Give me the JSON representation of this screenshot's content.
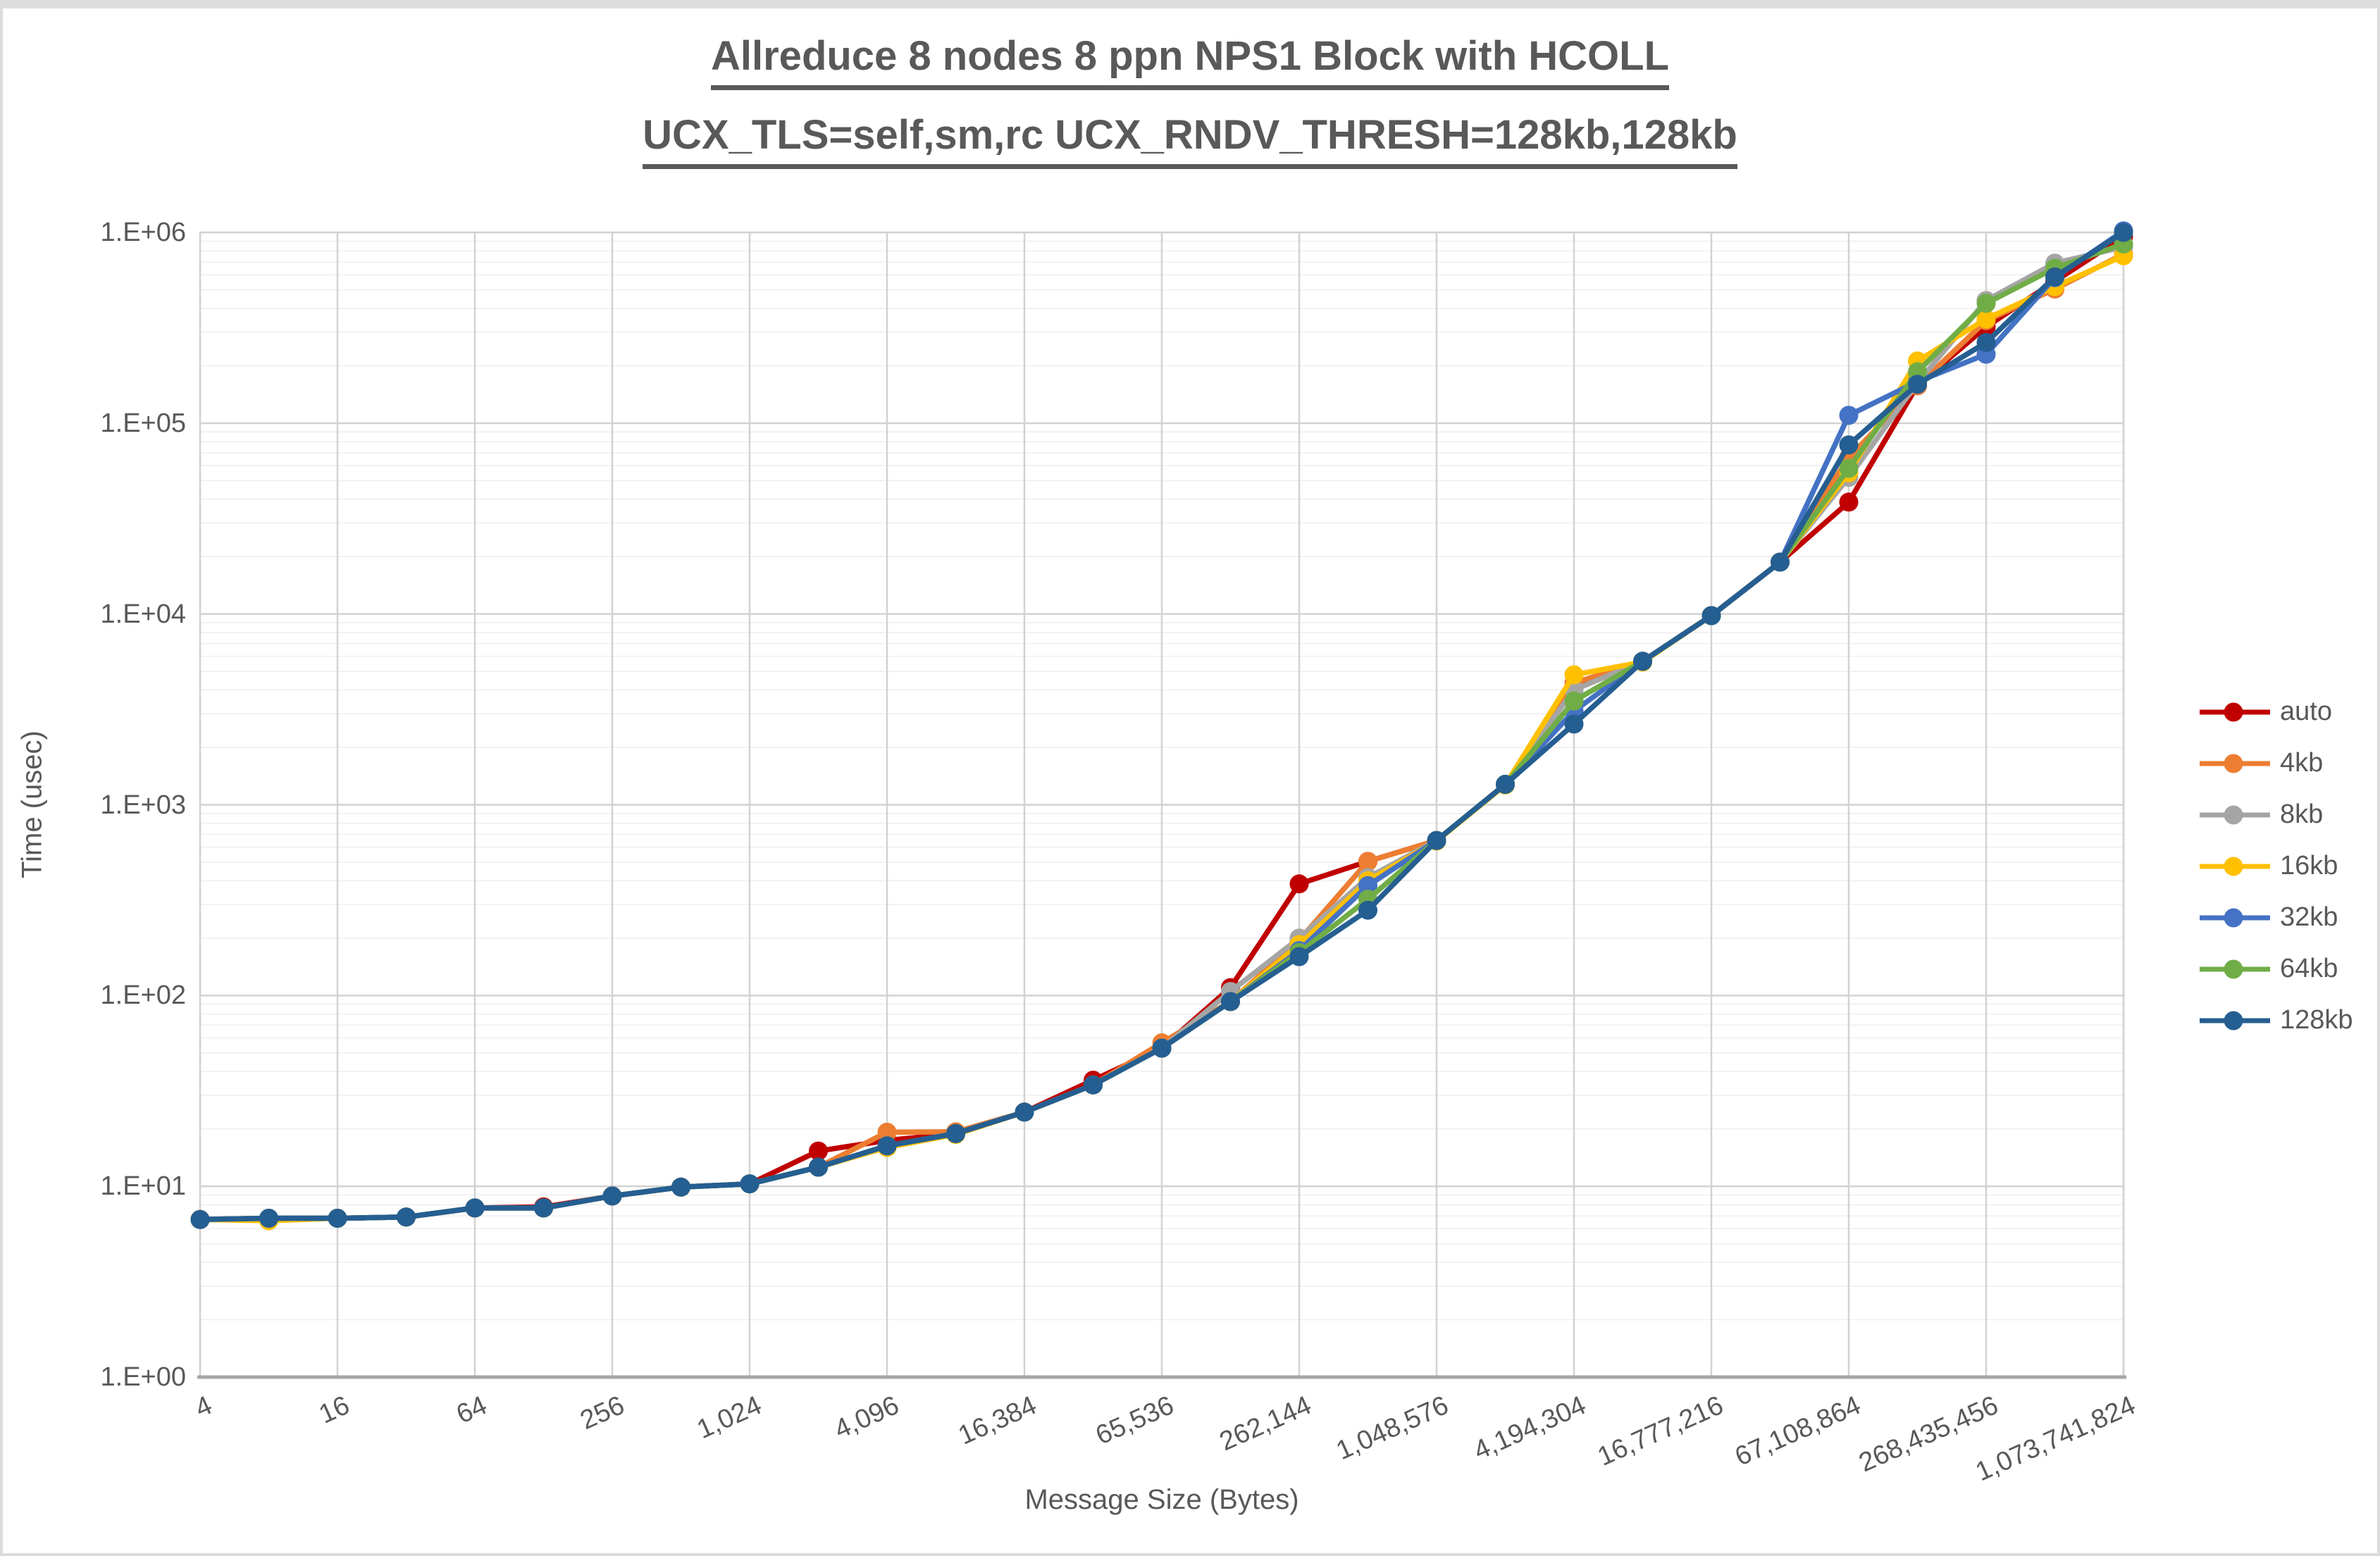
{
  "title": {
    "line1": "Allreduce 8 nodes 8 ppn NPS1 Block with HCOLL",
    "line2": "UCX_TLS=self,sm,rc UCX_RNDV_THRESH=128kb,128kb"
  },
  "axes": {
    "x_title": "Message Size (Bytes)",
    "y_title": "Time (usec)",
    "y_tick_labels": [
      "1.E+00",
      "1.E+01",
      "1.E+02",
      "1.E+03",
      "1.E+04",
      "1.E+05",
      "1.E+06"
    ],
    "x_tick_labels": [
      "4",
      "16",
      "64",
      "256",
      "1,024",
      "4,096",
      "16,384",
      "65,536",
      "262,144",
      "1,048,576",
      "4,194,304",
      "16,777,216",
      "67,108,864",
      "268,435,456",
      "1,073,741,824"
    ]
  },
  "legend": {
    "items": [
      {
        "label": "auto",
        "color": "#C00000"
      },
      {
        "label": "4kb",
        "color": "#ED7D31"
      },
      {
        "label": "8kb",
        "color": "#A5A5A5"
      },
      {
        "label": "16kb",
        "color": "#FFC000"
      },
      {
        "label": "32kb",
        "color": "#4472C4"
      },
      {
        "label": "64kb",
        "color": "#70AD47"
      },
      {
        "label": "128kb",
        "color": "#255E91"
      }
    ]
  },
  "ui_colors": {
    "text": "#595959",
    "grid_major": "#d2d2d2",
    "grid_minor": "#efefef",
    "axis_line": "#a6a6a6",
    "background": "#ffffff"
  },
  "chart_data": {
    "type": "line",
    "title": "Allreduce 8 nodes 8 ppn NPS1 Block with HCOLL UCX_TLS=self,sm,rc UCX_RNDV_THRESH=128kb,128kb",
    "xlabel": "Message Size (Bytes)",
    "ylabel": "Time (usec)",
    "x_scale": "log2",
    "y_scale": "log10",
    "xlim": [
      4,
      1073741824
    ],
    "ylim": [
      1,
      1000000
    ],
    "grid": {
      "major": true,
      "minor_log_horizontal": true
    },
    "legend_position": "right",
    "x": [
      4,
      8,
      16,
      32,
      64,
      128,
      256,
      512,
      1024,
      2048,
      4096,
      8192,
      16384,
      32768,
      65536,
      131072,
      262144,
      524288,
      1048576,
      2097152,
      4194304,
      8388608,
      16777216,
      33554432,
      67108864,
      134217728,
      268435456,
      536870912,
      1073741824
    ],
    "series": [
      {
        "name": "auto",
        "color": "#C00000",
        "values": [
          6.7,
          6.8,
          6.8,
          6.9,
          7.7,
          7.8,
          8.9,
          9.9,
          10.3,
          15.3,
          17.4,
          18.9,
          24.5,
          36,
          53,
          110,
          385,
          505,
          650,
          1280,
          4150,
          5650,
          9800,
          18700,
          38600,
          158000,
          320000,
          555000,
          950000
        ]
      },
      {
        "name": "4kb",
        "color": "#ED7D31",
        "values": [
          6.7,
          6.8,
          6.8,
          6.9,
          7.7,
          7.7,
          8.9,
          9.9,
          10.3,
          12.6,
          19.2,
          19.3,
          24.5,
          34,
          56.5,
          93,
          195,
          505,
          650,
          1280,
          4350,
          5650,
          9800,
          18700,
          66000,
          157000,
          345000,
          505000,
          770000
        ]
      },
      {
        "name": "8kb",
        "color": "#A5A5A5",
        "values": [
          6.7,
          6.8,
          6.8,
          6.9,
          7.7,
          7.7,
          8.9,
          9.9,
          10.3,
          12.6,
          16.3,
          18.9,
          24.5,
          34,
          53,
          105,
          200,
          415,
          650,
          1280,
          4000,
          5650,
          9800,
          18700,
          52000,
          163000,
          440000,
          690000,
          840000
        ]
      },
      {
        "name": "16kb",
        "color": "#FFC000",
        "values": [
          6.7,
          6.6,
          6.8,
          6.9,
          7.7,
          7.7,
          8.9,
          9.9,
          10.3,
          12.6,
          16.0,
          18.7,
          24.5,
          34,
          53,
          93,
          185,
          400,
          645,
          1270,
          4800,
          5600,
          9800,
          18700,
          55000,
          212000,
          352000,
          520000,
          755000
        ]
      },
      {
        "name": "32kb",
        "color": "#4472C4",
        "values": [
          6.7,
          6.8,
          6.8,
          6.9,
          7.7,
          7.7,
          8.9,
          9.9,
          10.3,
          12.6,
          16.3,
          18.9,
          24.5,
          34,
          53,
          93,
          172,
          377,
          650,
          1280,
          3100,
          5650,
          9800,
          18700,
          110000,
          165000,
          230000,
          580000,
          1020000
        ]
      },
      {
        "name": "64kb",
        "color": "#70AD47",
        "values": [
          6.7,
          6.8,
          6.8,
          6.9,
          7.7,
          7.7,
          8.9,
          9.9,
          10.3,
          12.6,
          16.3,
          18.9,
          24.5,
          34,
          53,
          93,
          168,
          320,
          650,
          1280,
          3500,
          5650,
          9800,
          18700,
          58000,
          186000,
          425000,
          650000,
          870000
        ]
      },
      {
        "name": "128kb",
        "color": "#255E91",
        "values": [
          6.7,
          6.8,
          6.8,
          6.9,
          7.7,
          7.7,
          8.9,
          9.9,
          10.3,
          12.6,
          16.3,
          18.9,
          24.5,
          34,
          53,
          93,
          160,
          280,
          650,
          1280,
          2650,
          5650,
          9800,
          18700,
          77000,
          160000,
          265000,
          585000,
          1000000
        ]
      }
    ]
  }
}
